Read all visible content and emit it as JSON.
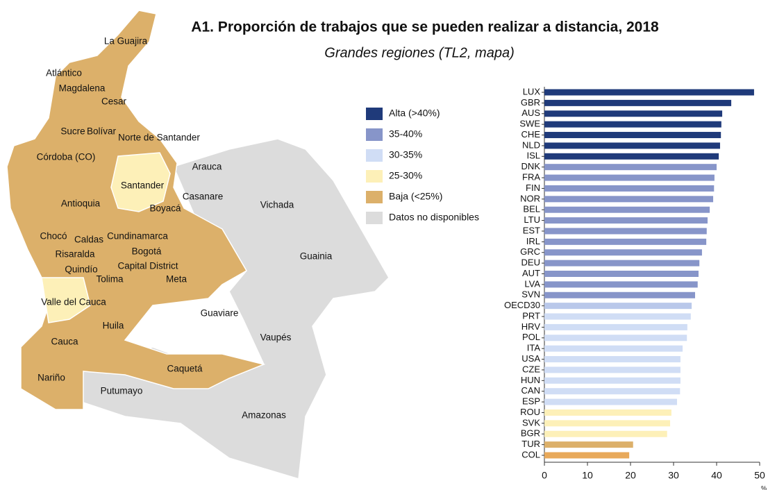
{
  "chart_data": {
    "type": "barh",
    "title": "A1. Proporción de trabajos que se pueden realizar a distancia, 2018",
    "subtitle": "Grandes regiones (TL2, mapa)",
    "legend": [
      {
        "name": "Alta (>40%)",
        "color": "#1f3a7a"
      },
      {
        "name": "35-40%",
        "color": "#8795c9"
      },
      {
        "name": "30-35%",
        "color": "#d0ddf5"
      },
      {
        "name": "25-30%",
        "color": "#fdf0b8"
      },
      {
        "name": "Baja (<25%)",
        "color": "#dcb06a"
      },
      {
        "name": "Datos no disponibles",
        "color": "#dcdcdc"
      }
    ],
    "map_labels": [
      "La Guajira",
      "Atlántico",
      "Magdalena",
      "Cesar",
      "Sucre",
      "Bolívar",
      "Norte de Santander",
      "Córdoba (CO)",
      "Arauca",
      "Santander",
      "Casanare",
      "Antioquia",
      "Boyacá",
      "Vichada",
      "Chocó",
      "Caldas",
      "Cundinamarca",
      "Risaralda",
      "Bogotá",
      "Guainia",
      "Quindío",
      "Capital District",
      "Tolima",
      "Meta",
      "Valle del Cauca",
      "Guaviare",
      "Huila",
      "Vaupés",
      "Cauca",
      "Caquetá",
      "Nariño",
      "Putumayo",
      "Amazonas"
    ],
    "categories": [
      "LUX",
      "GBR",
      "AUS",
      "SWE",
      "CHE",
      "NLD",
      "ISL",
      "DNK",
      "FRA",
      "FIN",
      "NOR",
      "BEL",
      "LTU",
      "EST",
      "IRL",
      "GRC",
      "DEU",
      "AUT",
      "LVA",
      "SVN",
      "OECD30",
      "PRT",
      "HRV",
      "POL",
      "ITA",
      "USA",
      "CZE",
      "HUN",
      "CAN",
      "ESP",
      "ROU",
      "SVK",
      "BGR",
      "TUR",
      "COL"
    ],
    "values": [
      48.7,
      43.4,
      41.3,
      41.1,
      41.0,
      40.8,
      40.5,
      40.0,
      39.5,
      39.4,
      39.2,
      38.4,
      37.9,
      37.7,
      37.6,
      36.6,
      36.0,
      35.8,
      35.6,
      35.0,
      34.2,
      34.0,
      33.2,
      33.1,
      32.1,
      31.6,
      31.6,
      31.6,
      31.5,
      30.8,
      29.5,
      29.2,
      28.5,
      20.6,
      19.7
    ],
    "colors": [
      "#1f3a7a",
      "#1f3a7a",
      "#1f3a7a",
      "#1f3a7a",
      "#1f3a7a",
      "#1f3a7a",
      "#1f3a7a",
      "#8795c9",
      "#8795c9",
      "#8795c9",
      "#8795c9",
      "#8795c9",
      "#8795c9",
      "#8795c9",
      "#8795c9",
      "#8795c9",
      "#8795c9",
      "#8795c9",
      "#8795c9",
      "#8795c9",
      "#b9c8ea",
      "#d0ddf5",
      "#d0ddf5",
      "#d0ddf5",
      "#d0ddf5",
      "#d0ddf5",
      "#d0ddf5",
      "#d0ddf5",
      "#d0ddf5",
      "#d0ddf5",
      "#fdf0b8",
      "#fdf0b8",
      "#fdf0b8",
      "#dcb06a",
      "#e8a95a"
    ],
    "xlim": [
      0,
      50
    ],
    "xticks": [
      0,
      10,
      20,
      30,
      40,
      50
    ],
    "xlabel": "%"
  }
}
